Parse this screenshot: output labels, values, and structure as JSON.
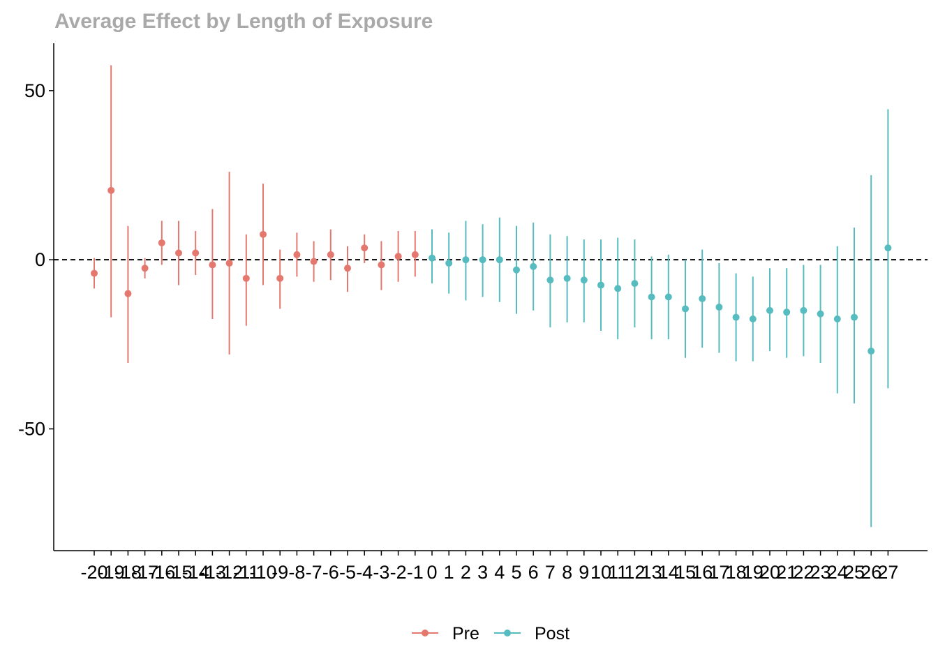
{
  "chart_data": {
    "type": "scatter",
    "title": "Average Effect by Length of Exposure",
    "xlabel": "",
    "ylabel": "",
    "ylim": [
      -86,
      64
    ],
    "y_ticks": [
      50,
      0,
      -50
    ],
    "y_tick_labels": [
      "50",
      "0",
      "-50"
    ],
    "reference_line": {
      "y": 0,
      "style": "dashed"
    },
    "grid": false,
    "legend": {
      "position": "bottom",
      "entries": [
        "Pre",
        "Post"
      ]
    },
    "colors": {
      "Pre": "#E5786E",
      "Post": "#56BCC0"
    },
    "x": [
      -20,
      -19,
      -18,
      -17,
      -16,
      -15,
      -14,
      -13,
      -12,
      -11,
      -10,
      -9,
      -8,
      -7,
      -6,
      -5,
      -4,
      -3,
      -2,
      -1,
      0,
      1,
      2,
      3,
      4,
      5,
      6,
      7,
      8,
      9,
      10,
      11,
      12,
      13,
      14,
      15,
      16,
      17,
      18,
      19,
      20,
      21,
      22,
      23,
      24,
      25,
      26,
      27
    ],
    "series": [
      {
        "name": "Pre",
        "x": [
          -20,
          -19,
          -18,
          -17,
          -16,
          -15,
          -14,
          -13,
          -12,
          -11,
          -10,
          -9,
          -8,
          -7,
          -6,
          -5,
          -4,
          -3,
          -2,
          -1
        ],
        "y": [
          -4,
          20.5,
          -10,
          -2.5,
          5,
          2,
          2,
          -1.5,
          -1,
          -5.5,
          7.5,
          -5.5,
          1.5,
          -0.5,
          1.5,
          -2.5,
          3.5,
          -1.5,
          1,
          1.5
        ],
        "lower": [
          -8.5,
          -17,
          -30.5,
          -5.5,
          -1.5,
          -7.5,
          -4.5,
          -17.5,
          -28,
          -19.5,
          -7.5,
          -14.5,
          -5,
          -6.5,
          -6,
          -9.5,
          -1,
          -9,
          -6.5,
          -5
        ],
        "upper": [
          0.5,
          57.5,
          10,
          0.5,
          11.5,
          11.5,
          8.5,
          15,
          26,
          7.5,
          22.5,
          3,
          8,
          5.5,
          9,
          4,
          7.5,
          5.5,
          8.5,
          8.5
        ]
      },
      {
        "name": "Post",
        "x": [
          0,
          1,
          2,
          3,
          4,
          5,
          6,
          7,
          8,
          9,
          10,
          11,
          12,
          13,
          14,
          15,
          16,
          17,
          18,
          19,
          20,
          21,
          22,
          23,
          24,
          25,
          26,
          27
        ],
        "y": [
          0.5,
          -1,
          0,
          0,
          0,
          -3,
          -2,
          -6,
          -5.5,
          -6,
          -7.5,
          -8.5,
          -7,
          -11,
          -11,
          -14.5,
          -11.5,
          -14,
          -17,
          -17.5,
          -15,
          -15.5,
          -15,
          -16,
          -17.5,
          -17,
          -27,
          3.5
        ],
        "lower": [
          -7,
          -10,
          -12,
          -11,
          -12.5,
          -16,
          -15,
          -20,
          -18.5,
          -18.5,
          -21,
          -23.5,
          -20,
          -23.5,
          -23.5,
          -29,
          -26,
          -27.5,
          -30,
          -30,
          -27,
          -29,
          -28.5,
          -30.5,
          -39.5,
          -42.5,
          -79,
          -38
        ],
        "upper": [
          9,
          8,
          11.5,
          10.5,
          12.5,
          10,
          11,
          7.5,
          7,
          6,
          6,
          6.5,
          6,
          1,
          1.5,
          0,
          3,
          -1,
          -4,
          -5,
          -2.5,
          -2.5,
          -1.5,
          -1.5,
          4,
          9.5,
          25,
          44.5
        ]
      }
    ]
  }
}
